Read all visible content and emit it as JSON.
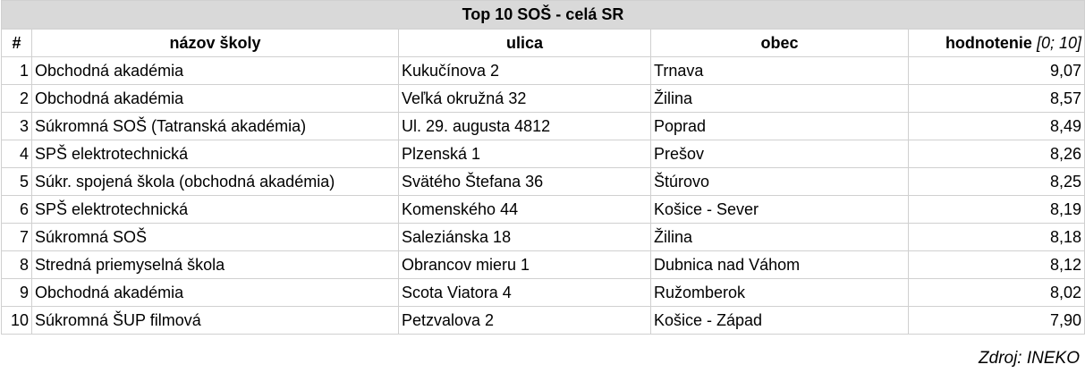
{
  "table": {
    "title": "Top 10 SOŠ - celá SR",
    "header": [
      "#",
      "názov školy",
      "ulica",
      "obec",
      "hodnotenie",
      "[0; 10]"
    ],
    "rows": [
      [
        1,
        "Obchodná akadémia",
        "Kukučínova 2",
        "Trnava",
        "9,07"
      ],
      [
        2,
        "Obchodná akadémia",
        "Veľká okružná 32",
        "Žilina",
        "8,57"
      ],
      [
        3,
        "Súkromná SOŠ (Tatranská akadémia)",
        "Ul. 29. augusta 4812",
        "Poprad",
        "8,49"
      ],
      [
        4,
        "SPŠ elektrotechnická",
        "Plzenská 1",
        "Prešov",
        "8,26"
      ],
      [
        5,
        "Súkr. spojená škola (obchodná akadémia)",
        "Svätého Štefana 36",
        "Štúrovo",
        "8,25"
      ],
      [
        6,
        "SPŠ elektrotechnická",
        "Komenského 44",
        "Košice - Sever",
        "8,19"
      ],
      [
        7,
        "Súkromná SOŠ",
        "Saleziánska 18",
        "Žilina",
        "8,18"
      ],
      [
        8,
        "Stredná priemyselná škola",
        "Obrancov mieru 1",
        "Dubnica nad Váhom",
        "8,12"
      ],
      [
        9,
        "Obchodná akadémia",
        "Scota Viatora 4",
        "Ružomberok",
        "8,02"
      ],
      [
        10,
        "Súkromná ŠUP filmová",
        "Petzvalova 2",
        "Košice - Západ",
        "7,90"
      ]
    ]
  },
  "source": "Zdroj: INEKO"
}
